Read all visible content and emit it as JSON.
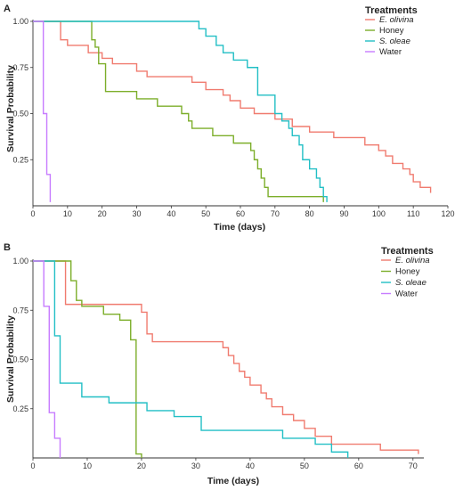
{
  "chart_data": [
    {
      "type": "line",
      "panel": "A",
      "xlabel": "Time (days)",
      "ylabel": "Survival Probability",
      "xlim": [
        0,
        120
      ],
      "ylim": [
        0,
        1.0
      ],
      "xticks": [
        "0",
        "10",
        "20",
        "30",
        "40",
        "50",
        "60",
        "70",
        "80",
        "90",
        "100",
        "110",
        "120"
      ],
      "yticks": [
        "0.25",
        "0.50",
        "0.75",
        "1.00"
      ],
      "xtick_values": [
        0,
        10,
        20,
        30,
        40,
        50,
        60,
        70,
        80,
        90,
        100,
        110,
        120
      ],
      "ytick_values": [
        0.25,
        0.5,
        0.75,
        1.0
      ],
      "grid": false,
      "legend_position": "top-right",
      "legend_title": "Treatments",
      "series": [
        {
          "name": "E. olivina",
          "italic": true,
          "color": "#f07b6f",
          "x": [
            0,
            8,
            10,
            16,
            20,
            23,
            30,
            33,
            46,
            50,
            55,
            57,
            60,
            64,
            70,
            75,
            80,
            87,
            96,
            100,
            102,
            104,
            107,
            109,
            110,
            112,
            115
          ],
          "y": [
            1.0,
            0.9,
            0.87,
            0.83,
            0.8,
            0.77,
            0.73,
            0.7,
            0.67,
            0.63,
            0.6,
            0.57,
            0.53,
            0.5,
            0.47,
            0.43,
            0.4,
            0.37,
            0.33,
            0.3,
            0.27,
            0.23,
            0.2,
            0.17,
            0.13,
            0.1,
            0.07
          ]
        },
        {
          "name": "Honey",
          "italic": false,
          "color": "#7cae2a",
          "x": [
            0,
            17,
            18,
            19,
            21,
            25,
            30,
            36,
            43,
            45,
            46,
            48,
            50,
            52,
            55,
            58,
            63,
            64,
            65,
            66,
            67,
            68,
            84
          ],
          "y": [
            1.0,
            0.9,
            0.86,
            0.77,
            0.62,
            0.62,
            0.58,
            0.54,
            0.5,
            0.46,
            0.42,
            0.42,
            0.42,
            0.38,
            0.38,
            0.34,
            0.3,
            0.25,
            0.2,
            0.15,
            0.1,
            0.05,
            0.02
          ]
        },
        {
          "name": "S. oleae",
          "italic": true,
          "color": "#22bfc5",
          "x": [
            0,
            48,
            50,
            53,
            55,
            58,
            62,
            65,
            70,
            72,
            74,
            75,
            77,
            78,
            80,
            82,
            83,
            84,
            85
          ],
          "y": [
            1.0,
            0.96,
            0.92,
            0.87,
            0.83,
            0.79,
            0.75,
            0.6,
            0.5,
            0.46,
            0.42,
            0.38,
            0.33,
            0.25,
            0.2,
            0.15,
            0.1,
            0.05,
            0.02
          ]
        },
        {
          "name": "Water",
          "italic": false,
          "color": "#c77cff",
          "x": [
            0,
            3,
            4,
            5
          ],
          "y": [
            1.0,
            0.5,
            0.17,
            0.02
          ]
        }
      ]
    },
    {
      "type": "line",
      "panel": "B",
      "xlabel": "Time (days)",
      "ylabel": "Survival Probability",
      "xlim": [
        0,
        72
      ],
      "ylim": [
        0,
        1.0
      ],
      "xticks": [
        "0",
        "10",
        "20",
        "30",
        "40",
        "50",
        "60",
        "70"
      ],
      "yticks": [
        "0.25",
        "0.50",
        "0.75",
        "1.00"
      ],
      "xtick_values": [
        0,
        10,
        20,
        30,
        40,
        50,
        60,
        70
      ],
      "ytick_values": [
        0.25,
        0.5,
        0.75,
        1.0
      ],
      "grid": false,
      "legend_position": "top-right",
      "legend_title": "Treatments",
      "series": [
        {
          "name": "E. olivina",
          "italic": true,
          "color": "#f07b6f",
          "x": [
            0,
            6,
            20,
            21,
            22,
            35,
            36,
            37,
            38,
            39,
            40,
            42,
            43,
            44,
            46,
            48,
            50,
            52,
            55,
            58,
            64,
            71
          ],
          "y": [
            1.0,
            0.78,
            0.74,
            0.63,
            0.59,
            0.56,
            0.52,
            0.48,
            0.44,
            0.41,
            0.37,
            0.33,
            0.3,
            0.26,
            0.22,
            0.19,
            0.15,
            0.11,
            0.07,
            0.07,
            0.04,
            0.02
          ]
        },
        {
          "name": "Honey",
          "italic": false,
          "color": "#7cae2a",
          "x": [
            0,
            7,
            8,
            9,
            13,
            16,
            18,
            19,
            20
          ],
          "y": [
            1.0,
            0.9,
            0.8,
            0.77,
            0.73,
            0.7,
            0.6,
            0.02,
            0.0
          ]
        },
        {
          "name": "S. oleae",
          "italic": true,
          "color": "#22bfc5",
          "x": [
            0,
            4,
            5,
            9,
            14,
            21,
            26,
            31,
            46,
            52,
            55,
            58
          ],
          "y": [
            1.0,
            0.62,
            0.38,
            0.31,
            0.28,
            0.24,
            0.21,
            0.14,
            0.1,
            0.07,
            0.03,
            0.0
          ]
        },
        {
          "name": "Water",
          "italic": false,
          "color": "#c77cff",
          "x": [
            0,
            2,
            3,
            4,
            5
          ],
          "y": [
            1.0,
            0.77,
            0.23,
            0.1,
            0.0
          ]
        }
      ]
    }
  ]
}
